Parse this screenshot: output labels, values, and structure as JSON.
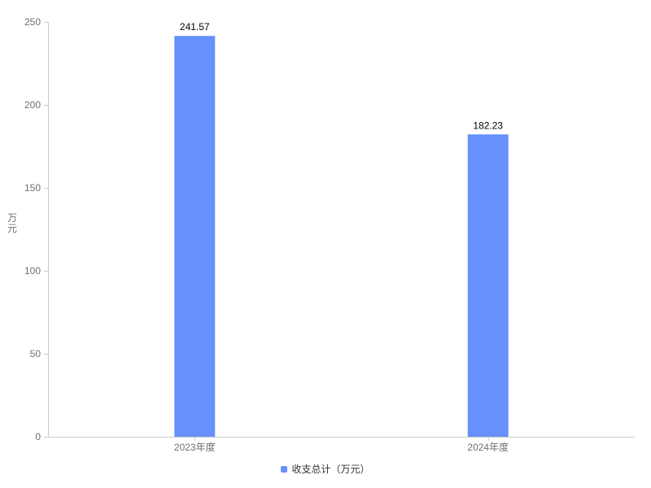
{
  "chart_data": {
    "type": "bar",
    "categories": [
      "2023年度",
      "2024年度"
    ],
    "series": [
      {
        "name": "收支总计（万元）",
        "values": [
          241.57,
          182.23
        ],
        "color": "#6690fb"
      }
    ],
    "data_labels": [
      "241.57",
      "182.23"
    ],
    "ylabel": "万元",
    "ylim": [
      0,
      250
    ],
    "yticks": [
      0,
      50,
      100,
      150,
      200,
      250
    ],
    "grid": false,
    "legend_position": "bottom"
  }
}
